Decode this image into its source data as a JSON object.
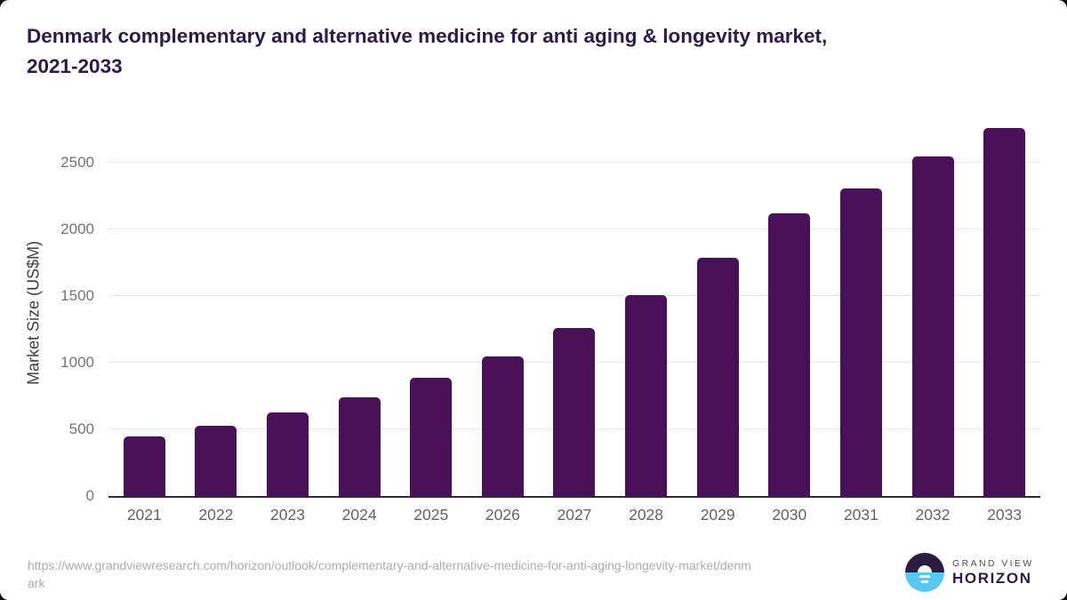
{
  "header": {
    "title_line1": "Denmark complementary and alternative medicine for anti aging & longevity market,",
    "title_line2": "2021-2033"
  },
  "chart_data": {
    "type": "bar",
    "title": "Denmark complementary and alternative medicine for anti aging & longevity market, 2021-2033",
    "categories": [
      "2021",
      "2022",
      "2023",
      "2024",
      "2025",
      "2026",
      "2027",
      "2028",
      "2029",
      "2030",
      "2031",
      "2032",
      "2033"
    ],
    "values": [
      450,
      525,
      625,
      740,
      885,
      1050,
      1260,
      1505,
      1790,
      2120,
      2310,
      2545,
      2760
    ],
    "xlabel": "",
    "ylabel": "Market Size (US$M)",
    "ylim": [
      0,
      2800
    ],
    "yticks": [
      0,
      500,
      1000,
      1500,
      2000,
      2500
    ],
    "grid": true,
    "legend": "none",
    "bar_color": "#491157",
    "gridline_color": "#e8e8e8",
    "axis_line_color": "#2e2e2e"
  },
  "footer": {
    "source_url_line1": "https://www.grandviewresearch.com/horizon/outlook/complementary-and-alternative-medicine-for-anti-aging-longevity-market/denm",
    "source_url_line2": "ark",
    "logo": {
      "line1": "GRAND VIEW",
      "line2": "HORIZON",
      "icon_top_color": "#2D1B44",
      "icon_bottom_color": "#5BC7F3"
    }
  }
}
